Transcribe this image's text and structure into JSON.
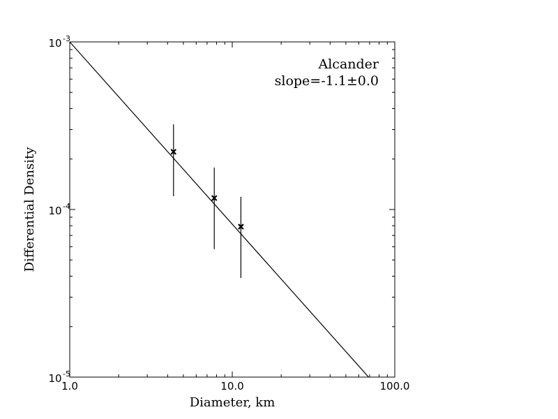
{
  "chart_data": {
    "type": "scatter",
    "title": "",
    "xlabel": "Diameter, km",
    "ylabel": "Differential Density",
    "x_scale": "log",
    "y_scale": "log",
    "xlim": [
      1.0,
      100.0
    ],
    "ylim": [
      1e-05,
      0.001
    ],
    "x_ticks": [
      {
        "value": 1.0,
        "label": "1.0"
      },
      {
        "value": 10.0,
        "label": "10.0"
      },
      {
        "value": 100.0,
        "label": "100.0"
      }
    ],
    "y_ticks": [
      {
        "value": 0.001,
        "base": "10",
        "exp": "-3"
      },
      {
        "value": 0.0001,
        "base": "10",
        "exp": "-4"
      },
      {
        "value": 1e-05,
        "base": "10",
        "exp": "-5"
      }
    ],
    "grid": false,
    "series": [
      {
        "marker": "x",
        "color": "#000000",
        "points": [
          {
            "x": 4.35,
            "y": 0.000221,
            "y_low": 0.00012,
            "y_high": 0.000322
          },
          {
            "x": 7.75,
            "y": 0.000117,
            "y_low": 5.8e-05,
            "y_high": 0.000178
          },
          {
            "x": 11.3,
            "y": 7.9e-05,
            "y_low": 3.9e-05,
            "y_high": 0.000119
          }
        ]
      }
    ],
    "fit_line": {
      "color": "#000000",
      "points": [
        {
          "x": 1.0,
          "y": 0.001
        },
        {
          "x": 69.0,
          "y": 1e-05
        }
      ]
    },
    "annotation": {
      "name": "Alcander",
      "slope": "slope=-1.1±0.0",
      "placement": "top-right"
    }
  }
}
